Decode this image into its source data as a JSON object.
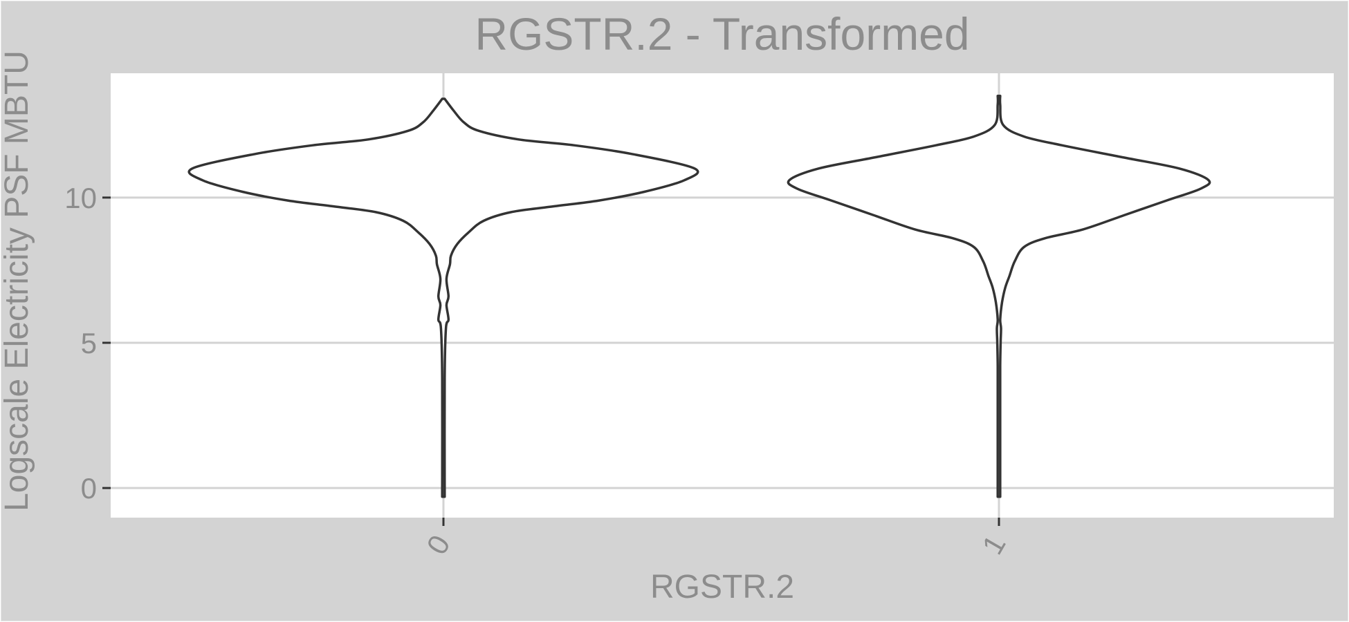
{
  "chart_data": {
    "type": "violin",
    "title": "RGSTR.2 - Transformed",
    "xlabel": "RGSTR.2",
    "ylabel": "Logscale Electricity PSF MBTU",
    "categories": [
      "0",
      "1"
    ],
    "y_ticks": [
      0,
      5,
      10
    ],
    "ylim": [
      -1.02,
      14.28
    ],
    "grid": true,
    "colors": {
      "background": "#d3d3d3",
      "panel": "#ffffff",
      "grid": "#d3d3d3",
      "outline": "#333333",
      "text": "#8c8c8c"
    },
    "series": [
      {
        "category": "0",
        "y_range": [
          -0.3,
          13.4
        ],
        "density_profile": [
          {
            "y": -0.3,
            "d": 0.005
          },
          {
            "y": 3.8,
            "d": 0.005
          },
          {
            "y": 5.5,
            "d": 0.01
          },
          {
            "y": 5.8,
            "d": 0.02
          },
          {
            "y": 6.3,
            "d": 0.012
          },
          {
            "y": 6.6,
            "d": 0.02
          },
          {
            "y": 7.2,
            "d": 0.012
          },
          {
            "y": 7.7,
            "d": 0.026
          },
          {
            "y": 8.0,
            "d": 0.03
          },
          {
            "y": 8.4,
            "d": 0.055
          },
          {
            "y": 8.8,
            "d": 0.1
          },
          {
            "y": 9.2,
            "d": 0.16
          },
          {
            "y": 9.5,
            "d": 0.27
          },
          {
            "y": 9.7,
            "d": 0.44
          },
          {
            "y": 9.9,
            "d": 0.62
          },
          {
            "y": 10.2,
            "d": 0.8
          },
          {
            "y": 10.6,
            "d": 0.96
          },
          {
            "y": 11.0,
            "d": 1.0
          },
          {
            "y": 11.5,
            "d": 0.75
          },
          {
            "y": 11.8,
            "d": 0.52
          },
          {
            "y": 12.0,
            "d": 0.3
          },
          {
            "y": 12.3,
            "d": 0.14
          },
          {
            "y": 12.6,
            "d": 0.08
          },
          {
            "y": 13.0,
            "d": 0.04
          },
          {
            "y": 13.4,
            "d": 0.005
          }
        ]
      },
      {
        "category": "1",
        "y_range": [
          -0.3,
          13.5
        ],
        "density_profile": [
          {
            "y": -0.3,
            "d": 0.005
          },
          {
            "y": 1.0,
            "d": 0.005
          },
          {
            "y": 1.5,
            "d": 0.005
          },
          {
            "y": 3.0,
            "d": 0.005
          },
          {
            "y": 4.2,
            "d": 0.005
          },
          {
            "y": 5.0,
            "d": 0.008
          },
          {
            "y": 5.5,
            "d": 0.01
          },
          {
            "y": 5.8,
            "d": 0.006
          },
          {
            "y": 6.4,
            "d": 0.015
          },
          {
            "y": 6.9,
            "d": 0.03
          },
          {
            "y": 7.3,
            "d": 0.05
          },
          {
            "y": 7.8,
            "d": 0.075
          },
          {
            "y": 8.3,
            "d": 0.12
          },
          {
            "y": 8.6,
            "d": 0.22
          },
          {
            "y": 8.9,
            "d": 0.4
          },
          {
            "y": 9.4,
            "d": 0.6
          },
          {
            "y": 9.9,
            "d": 0.8
          },
          {
            "y": 10.3,
            "d": 0.96
          },
          {
            "y": 10.6,
            "d": 1.0
          },
          {
            "y": 11.0,
            "d": 0.86
          },
          {
            "y": 11.4,
            "d": 0.58
          },
          {
            "y": 11.8,
            "d": 0.3
          },
          {
            "y": 12.1,
            "d": 0.12
          },
          {
            "y": 12.5,
            "d": 0.02
          },
          {
            "y": 13.2,
            "d": 0.004
          },
          {
            "y": 13.5,
            "d": 0.003
          }
        ]
      }
    ]
  }
}
